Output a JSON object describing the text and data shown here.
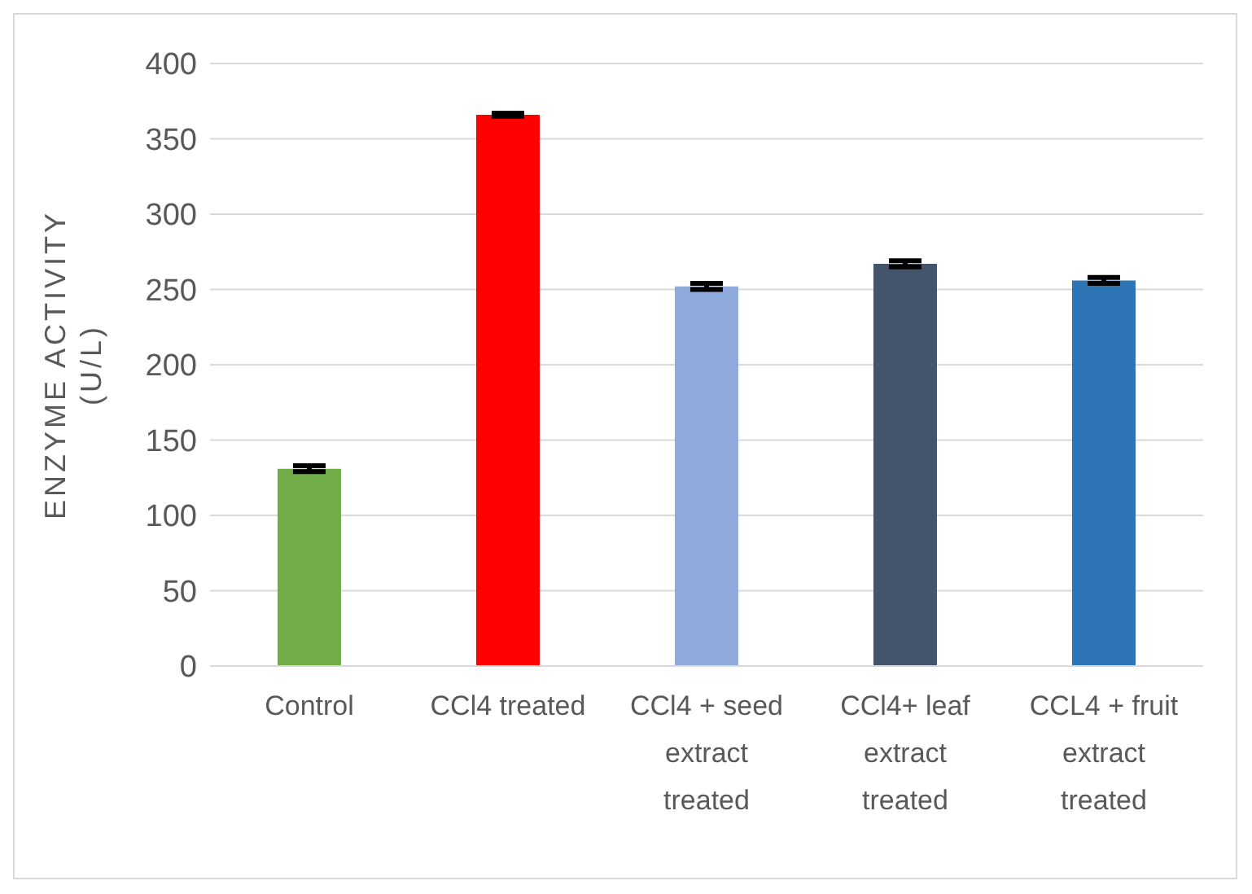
{
  "chart_data": {
    "type": "bar",
    "ylabel": "ENZYME ACTIVITY (U/L)",
    "categories": [
      "Control",
      "CCl4 treated",
      "CCl4 + seed extract treated",
      "CCl4+ leaf extract treated",
      "CCL4 + fruit extract treated"
    ],
    "values": [
      131,
      366,
      252,
      267,
      256
    ],
    "colors": [
      "#70ad47",
      "#ff0000",
      "#8eaadb",
      "#44546a",
      "#2e75b6"
    ],
    "errors": [
      2,
      1,
      2,
      2,
      2
    ],
    "ylim": [
      0,
      400
    ],
    "yticks": [
      0,
      50,
      100,
      150,
      200,
      250,
      300,
      350,
      400
    ],
    "grid": "y"
  }
}
